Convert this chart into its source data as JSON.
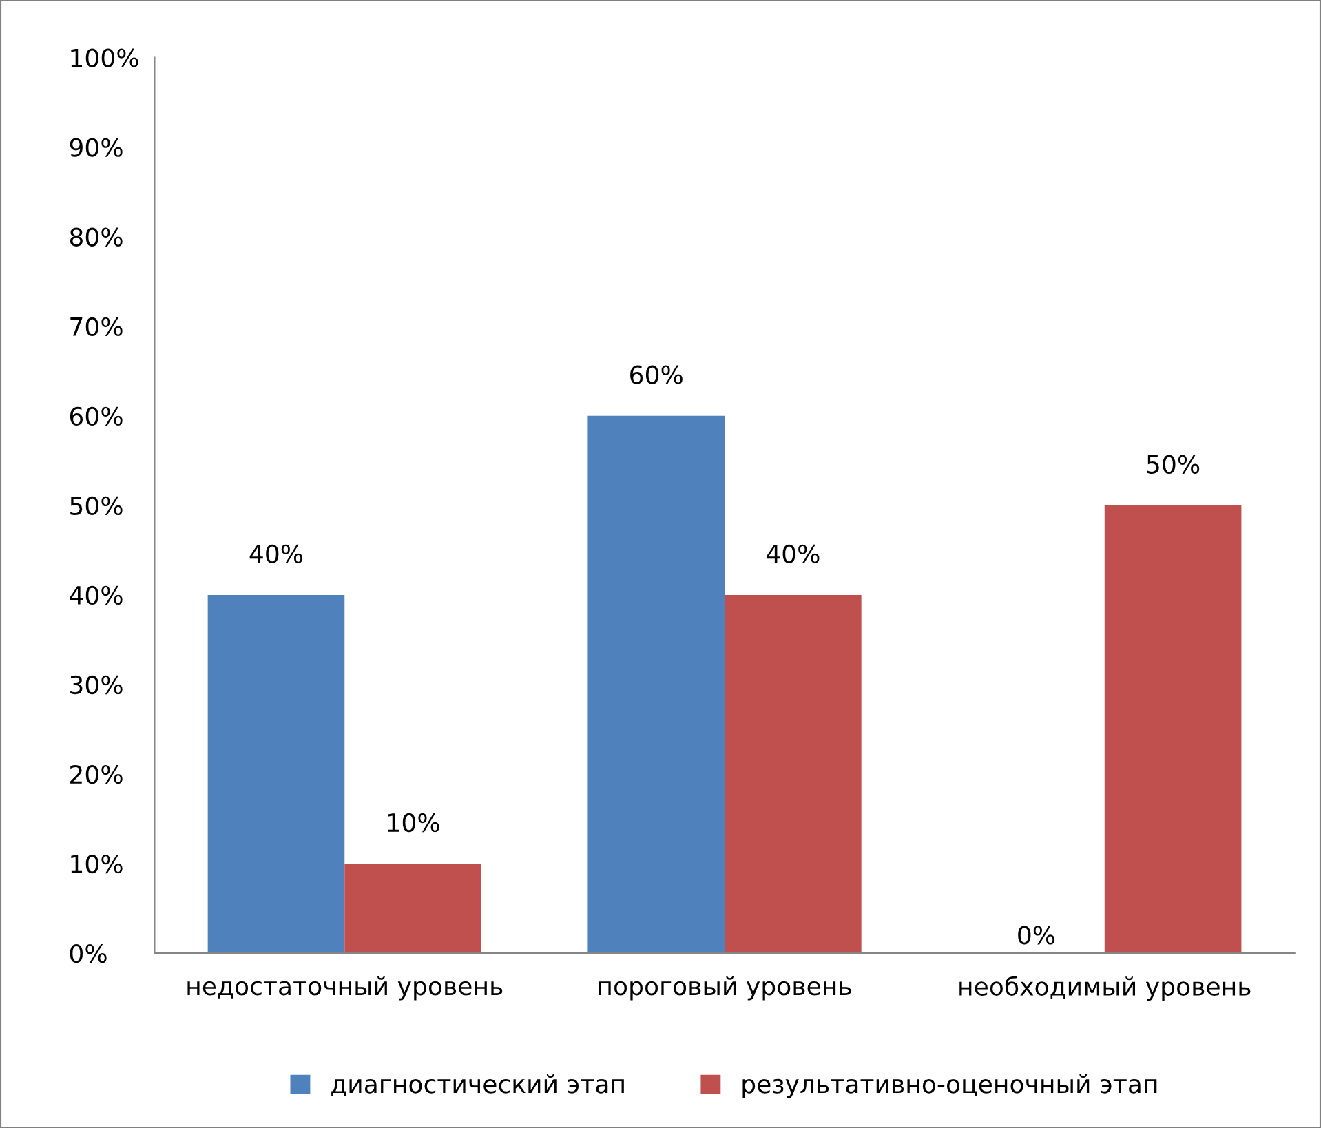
{
  "chart_data": {
    "type": "bar",
    "categories": [
      "недостаточный уровень",
      "пороговый уровень",
      "необходимый уровень"
    ],
    "series": [
      {
        "name": "диагностический этап",
        "color": "#4f81bd",
        "values": [
          40,
          60,
          0
        ],
        "value_labels": [
          "40%",
          "60%",
          "0%"
        ]
      },
      {
        "name": "результативно-оценочный этап",
        "color": "#c0504d",
        "values": [
          10,
          40,
          50
        ],
        "value_labels": [
          "10%",
          "40%",
          "50%"
        ]
      }
    ],
    "ylim": [
      0,
      100
    ],
    "yticks": [
      {
        "value": 0,
        "label": "0%"
      },
      {
        "value": 10,
        "label": "10%"
      },
      {
        "value": 20,
        "label": "20%"
      },
      {
        "value": 30,
        "label": "30%"
      },
      {
        "value": 40,
        "label": "40%"
      },
      {
        "value": 50,
        "label": "50%"
      },
      {
        "value": 60,
        "label": "60%"
      },
      {
        "value": 70,
        "label": "70%"
      },
      {
        "value": 80,
        "label": "80%"
      },
      {
        "value": 90,
        "label": "90%"
      },
      {
        "value": 100,
        "label": "100%"
      }
    ],
    "grid": false,
    "legend": "bottom"
  }
}
